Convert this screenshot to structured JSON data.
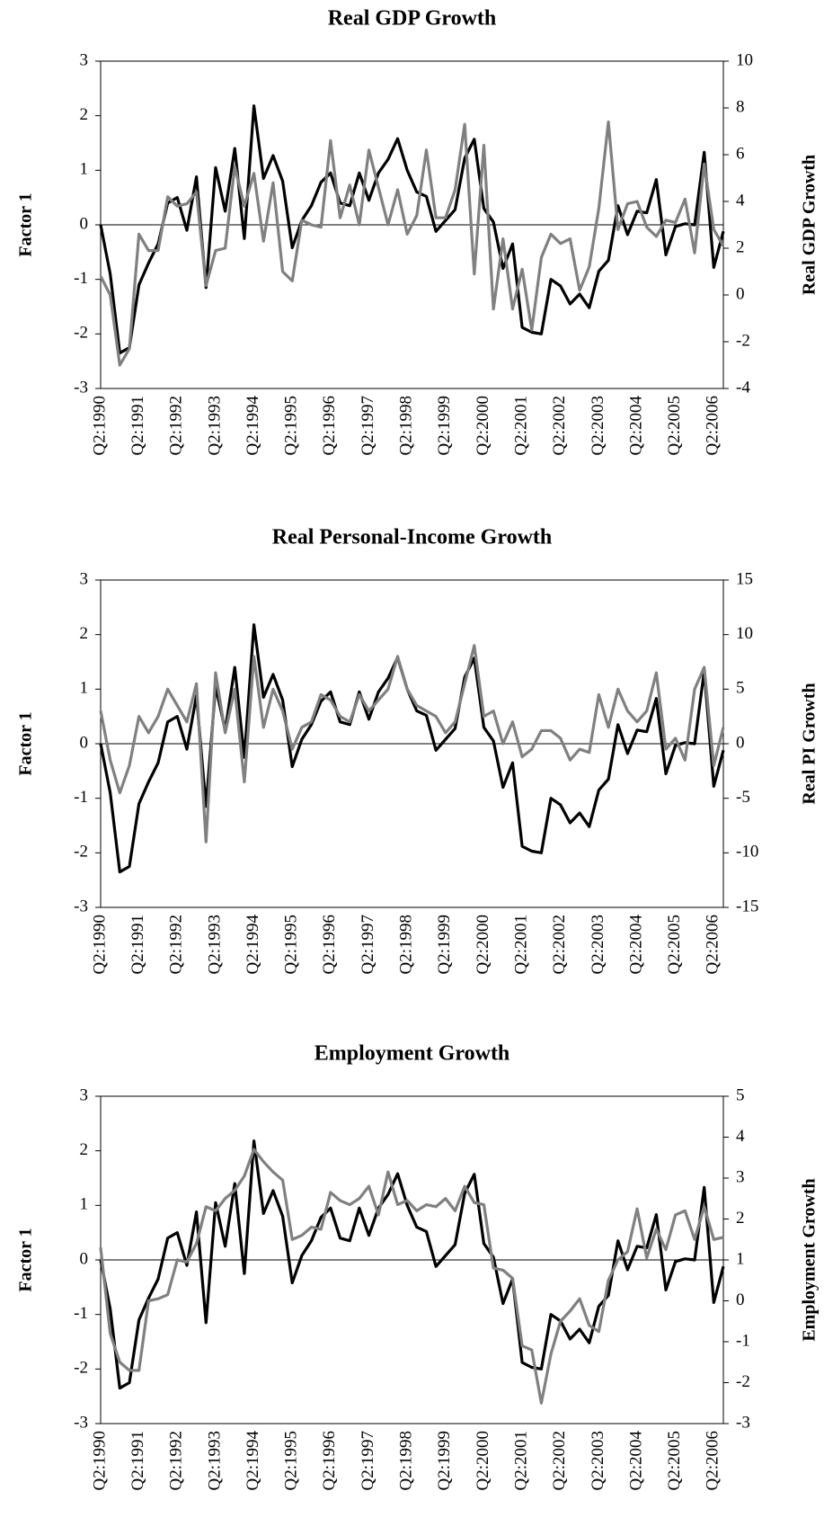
{
  "chart_data": [
    {
      "type": "line",
      "title": "Real GDP Growth",
      "ylabel": "Factor 1",
      "y2label": "Real GDP Growth",
      "categories": [
        "Q2:1990",
        null,
        null,
        null,
        "Q2:1991",
        null,
        null,
        null,
        "Q2:1992",
        null,
        null,
        null,
        "Q2:1993",
        null,
        null,
        null,
        "Q2:1994",
        null,
        null,
        null,
        "Q2:1995",
        null,
        null,
        null,
        "Q2:1996",
        null,
        null,
        null,
        "Q2:1997",
        null,
        null,
        null,
        "Q2:1998",
        null,
        null,
        null,
        "Q2:1999",
        null,
        null,
        null,
        "Q2:2000",
        null,
        null,
        null,
        "Q2:2001",
        null,
        null,
        null,
        "Q2:2002",
        null,
        null,
        null,
        "Q2:2003",
        null,
        null,
        null,
        "Q2:2004",
        null,
        null,
        null,
        "Q2:2005",
        null,
        null,
        null,
        "Q2:2006",
        null
      ],
      "ylim": [
        -3,
        3
      ],
      "yticks": [
        -3,
        -2,
        -1,
        0,
        1,
        2,
        3
      ],
      "y2lim": [
        -4,
        10
      ],
      "y2ticks": [
        -4,
        -2,
        0,
        2,
        4,
        6,
        8,
        10
      ],
      "series": [
        {
          "color": "#000000",
          "values": [
            0.0,
            -0.9,
            -2.35,
            -2.25,
            -1.1,
            -0.7,
            -0.35,
            0.4,
            0.5,
            -0.1,
            0.88,
            -1.15,
            1.05,
            0.25,
            1.4,
            -0.25,
            2.18,
            0.85,
            1.27,
            0.8,
            -0.42,
            0.08,
            0.35,
            0.78,
            0.95,
            0.4,
            0.35,
            0.95,
            0.45,
            0.95,
            1.2,
            1.58,
            1.0,
            0.6,
            0.52,
            -0.12,
            0.08,
            0.28,
            1.22,
            1.57,
            0.3,
            0.05,
            -0.8,
            -0.35,
            -1.88,
            -1.97,
            -2.0,
            -1.0,
            -1.12,
            -1.45,
            -1.27,
            -1.52,
            -0.85,
            -0.65,
            0.35,
            -0.18,
            0.25,
            0.22,
            0.83,
            -0.55,
            -0.03,
            0.02,
            0.0,
            1.33,
            -0.78,
            -0.12
          ]
        },
        {
          "color": "#808080",
          "axis": "y2",
          "values": [
            0.8,
            0.0,
            -3.0,
            -2.3,
            2.6,
            1.9,
            1.9,
            4.2,
            3.8,
            3.9,
            4.4,
            0.4,
            1.9,
            2.0,
            5.5,
            3.8,
            5.2,
            2.3,
            4.8,
            1.0,
            0.6,
            3.2,
            3.0,
            2.9,
            6.6,
            3.3,
            4.7,
            3.0,
            6.2,
            4.6,
            3.0,
            4.5,
            2.6,
            3.4,
            6.2,
            3.3,
            3.3,
            4.5,
            7.3,
            0.9,
            6.4,
            -0.6,
            2.4,
            -0.6,
            1.1,
            -1.5,
            1.6,
            2.6,
            2.2,
            2.4,
            0.2,
            1.2,
            3.7,
            7.4,
            2.8,
            3.9,
            4.0,
            2.9,
            2.5,
            3.2,
            3.1,
            4.1,
            1.8,
            5.6,
            2.8,
            2.1
          ]
        }
      ]
    },
    {
      "type": "line",
      "title": "Real Personal-Income Growth",
      "ylabel": "Factor 1",
      "y2label": "Real PI Growth",
      "categories": [
        "Q2:1990",
        null,
        null,
        null,
        "Q2:1991",
        null,
        null,
        null,
        "Q2:1992",
        null,
        null,
        null,
        "Q2:1993",
        null,
        null,
        null,
        "Q2:1994",
        null,
        null,
        null,
        "Q2:1995",
        null,
        null,
        null,
        "Q2:1996",
        null,
        null,
        null,
        "Q2:1997",
        null,
        null,
        null,
        "Q2:1998",
        null,
        null,
        null,
        "Q2:1999",
        null,
        null,
        null,
        "Q2:2000",
        null,
        null,
        null,
        "Q2:2001",
        null,
        null,
        null,
        "Q2:2002",
        null,
        null,
        null,
        "Q2:2003",
        null,
        null,
        null,
        "Q2:2004",
        null,
        null,
        null,
        "Q2:2005",
        null,
        null,
        null,
        "Q2:2006",
        null
      ],
      "ylim": [
        -3,
        3
      ],
      "yticks": [
        -3,
        -2,
        -1,
        0,
        1,
        2,
        3
      ],
      "y2lim": [
        -15,
        15
      ],
      "y2ticks": [
        -15,
        -10,
        -5,
        0,
        5,
        10,
        15
      ],
      "series": [
        {
          "color": "#000000",
          "values": [
            0.0,
            -0.9,
            -2.35,
            -2.25,
            -1.1,
            -0.7,
            -0.35,
            0.4,
            0.5,
            -0.1,
            0.88,
            -1.15,
            1.05,
            0.25,
            1.4,
            -0.25,
            2.18,
            0.85,
            1.27,
            0.8,
            -0.42,
            0.08,
            0.35,
            0.78,
            0.95,
            0.4,
            0.35,
            0.95,
            0.45,
            0.95,
            1.2,
            1.58,
            1.0,
            0.6,
            0.52,
            -0.12,
            0.08,
            0.28,
            1.22,
            1.57,
            0.3,
            0.05,
            -0.8,
            -0.35,
            -1.88,
            -1.97,
            -2.0,
            -1.0,
            -1.12,
            -1.45,
            -1.27,
            -1.52,
            -0.85,
            -0.65,
            0.35,
            -0.18,
            0.25,
            0.22,
            0.83,
            -0.55,
            -0.03,
            0.02,
            0.0,
            1.33,
            -0.78,
            -0.12
          ]
        },
        {
          "color": "#808080",
          "axis": "y2",
          "values": [
            3,
            -1.5,
            -4.5,
            -2,
            2.5,
            1,
            2.5,
            5,
            3.5,
            2,
            5.5,
            -9,
            6.5,
            1,
            5,
            -3.5,
            8,
            1.5,
            5,
            3,
            -0.5,
            1.5,
            2,
            4.5,
            4,
            2.5,
            2,
            4.5,
            3,
            4,
            5,
            8,
            5,
            3.5,
            3,
            2.5,
            1,
            2,
            5.5,
            9,
            2.5,
            3,
            0,
            2,
            -1.2,
            -0.5,
            1.2,
            1.2,
            0.5,
            -1.5,
            -0.5,
            -0.8,
            4.5,
            1.5,
            5,
            3,
            2,
            3,
            6.5,
            -0.5,
            0.5,
            -1.5,
            5,
            7,
            -2,
            1.5
          ]
        }
      ]
    },
    {
      "type": "line",
      "title": "Employment Growth",
      "ylabel": "Factor 1",
      "y2label": "Employment Growth",
      "categories": [
        "Q2:1990",
        null,
        null,
        null,
        "Q2:1991",
        null,
        null,
        null,
        "Q2:1992",
        null,
        null,
        null,
        "Q2:1993",
        null,
        null,
        null,
        "Q2:1994",
        null,
        null,
        null,
        "Q2:1995",
        null,
        null,
        null,
        "Q2:1996",
        null,
        null,
        null,
        "Q2:1997",
        null,
        null,
        null,
        "Q2:1998",
        null,
        null,
        null,
        "Q2:1999",
        null,
        null,
        null,
        "Q2:2000",
        null,
        null,
        null,
        "Q2:2001",
        null,
        null,
        null,
        "Q2:2002",
        null,
        null,
        null,
        "Q2:2003",
        null,
        null,
        null,
        "Q2:2004",
        null,
        null,
        null,
        "Q2:2005",
        null,
        null,
        null,
        "Q2:2006",
        null
      ],
      "ylim": [
        -3,
        3
      ],
      "yticks": [
        -3,
        -2,
        -1,
        0,
        1,
        2,
        3
      ],
      "y2lim": [
        -3,
        5
      ],
      "y2ticks": [
        -3,
        -2,
        -1,
        0,
        1,
        2,
        3,
        4,
        5
      ],
      "series": [
        {
          "color": "#000000",
          "values": [
            0.0,
            -0.9,
            -2.35,
            -2.25,
            -1.1,
            -0.7,
            -0.35,
            0.4,
            0.5,
            -0.1,
            0.88,
            -1.15,
            1.05,
            0.25,
            1.4,
            -0.25,
            2.18,
            0.85,
            1.27,
            0.8,
            -0.42,
            0.08,
            0.35,
            0.78,
            0.95,
            0.4,
            0.35,
            0.95,
            0.45,
            0.95,
            1.2,
            1.58,
            1.0,
            0.6,
            0.52,
            -0.12,
            0.08,
            0.28,
            1.22,
            1.57,
            0.3,
            0.05,
            -0.8,
            -0.35,
            -1.88,
            -1.97,
            -2.0,
            -1.0,
            -1.12,
            -1.45,
            -1.27,
            -1.52,
            -0.85,
            -0.65,
            0.35,
            -0.18,
            0.25,
            0.22,
            0.83,
            -0.55,
            -0.03,
            0.02,
            0.0,
            1.33,
            -0.78,
            -0.12
          ]
        },
        {
          "color": "#808080",
          "axis": "y2",
          "values": [
            1.3,
            -0.8,
            -1.5,
            -1.7,
            -1.7,
            0,
            0.05,
            0.15,
            1,
            0.95,
            1.4,
            2.3,
            2.2,
            2.5,
            2.7,
            3.05,
            3.7,
            3.4,
            3.15,
            2.95,
            1.5,
            1.6,
            1.8,
            1.75,
            2.65,
            2.45,
            2.35,
            2.5,
            2.8,
            2.1,
            3.15,
            2.35,
            2.45,
            2.2,
            2.35,
            2.3,
            2.5,
            2.2,
            2.8,
            2.4,
            2.35,
            0.8,
            0.75,
            0.55,
            -1.1,
            -1.2,
            -2.5,
            -1.3,
            -0.5,
            -0.25,
            0.05,
            -0.6,
            -0.75,
            0.5,
            1.0,
            1.2,
            2.25,
            1.05,
            1.75,
            1.25,
            2.1,
            2.2,
            1.5,
            2.3,
            1.5,
            1.55
          ]
        }
      ]
    }
  ]
}
